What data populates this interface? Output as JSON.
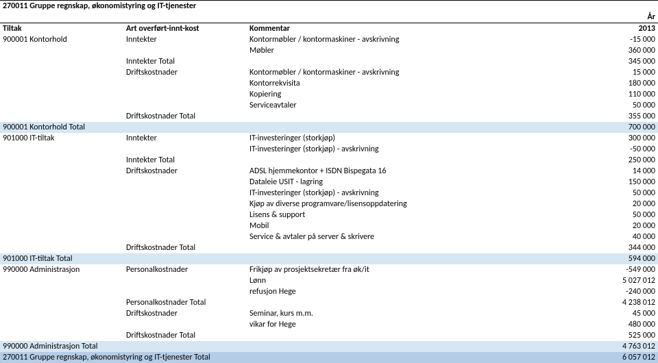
{
  "colors": {
    "background": "#ffffff",
    "text": "#000000",
    "tint_light": "#d6e6f3",
    "tint_dark": "#b4cce5",
    "border": "#000000"
  },
  "header": {
    "title": "270011 Gruppe regnskap, økonomistyring og IT-tjenester",
    "year_label": "År",
    "col_tiltak": "Tiltak",
    "col_art": "Art overført-innt-kost",
    "col_komm": "Kommentar",
    "year": "2013"
  },
  "r": {
    "a1": "900001 Kontorhold",
    "a2": "Inntekter",
    "a3": "Kontormøbler / kontormaskiner - avskrivning",
    "a4": "-15 000",
    "b3": "Møbler",
    "b4": "360 000",
    "c2": "Inntekter Total",
    "c4": "345 000",
    "d2": "Driftskostnader",
    "d3": "Kontormøbler / kontormaskiner - avskrivning",
    "d4": "15 000",
    "e3": "Kontorrekvisita",
    "e4": "180 000",
    "f3": "Kopiering",
    "f4": "110 000",
    "g3": "Serviceavtaler",
    "g4": "50 000",
    "h2": "Driftskostnader Total",
    "h4": "355 000",
    "i1": "900001 Kontorhold Total",
    "i4": "700 000",
    "j1": "901000 IT-tiltak",
    "j2": "Inntekter",
    "j3": "IT-investeringer (storkjøp)",
    "j4": "300 000",
    "k3": "IT-investeringer (storkjøp) - avskrivning",
    "k4": "-50 000",
    "l2": "Inntekter Total",
    "l4": "250 000",
    "m2": "Driftskostnader",
    "m3": "ADSL hjemmekontor + ISDN Bispegata 16",
    "m4": "14 000",
    "n3": "Dataleie USIT - lagring",
    "n4": "150 000",
    "o3": "IT-investeringer (storkjøp) - avskrivning",
    "o4": "50 000",
    "p3": "Kjøp av diverse programvare/lisensoppdatering",
    "p4": "20 000",
    "q3": "Lisens & support",
    "q4": "50 000",
    "r3": "Mobil",
    "r4": "20 000",
    "s3": "Service & avtaler på server & skrivere",
    "s4": "40 000",
    "t2": "Driftskostnader Total",
    "t4": "344 000",
    "u1": "901000 IT-tiltak Total",
    "u4": "594 000",
    "v1": "990000 Administrasjon",
    "v2": "Personalkostnader",
    "v3": "Frikjøp av prosjektsekretær fra øk/it",
    "v4": "-549 000",
    "w3": "Lønn",
    "w4": "5 027 012",
    "x3": "refusjon Hege",
    "x4": "-240 000",
    "y2": "Personalkostnader Total",
    "y4": "4 238 012",
    "z2": "Driftskostnader",
    "z3": "Seminar, kurs m.m.",
    "z4": "45 000",
    "aa3": "vikar for Hege",
    "aa4": "480 000",
    "ab2": "Driftskostnader Total",
    "ab4": "525 000",
    "ac1": "990000 Administrasjon Total",
    "ac4": "4 763 012",
    "ad1": "270011 Gruppe regnskap, økonomistyring og IT-tjenester Total",
    "ad4": "6 057 012"
  }
}
